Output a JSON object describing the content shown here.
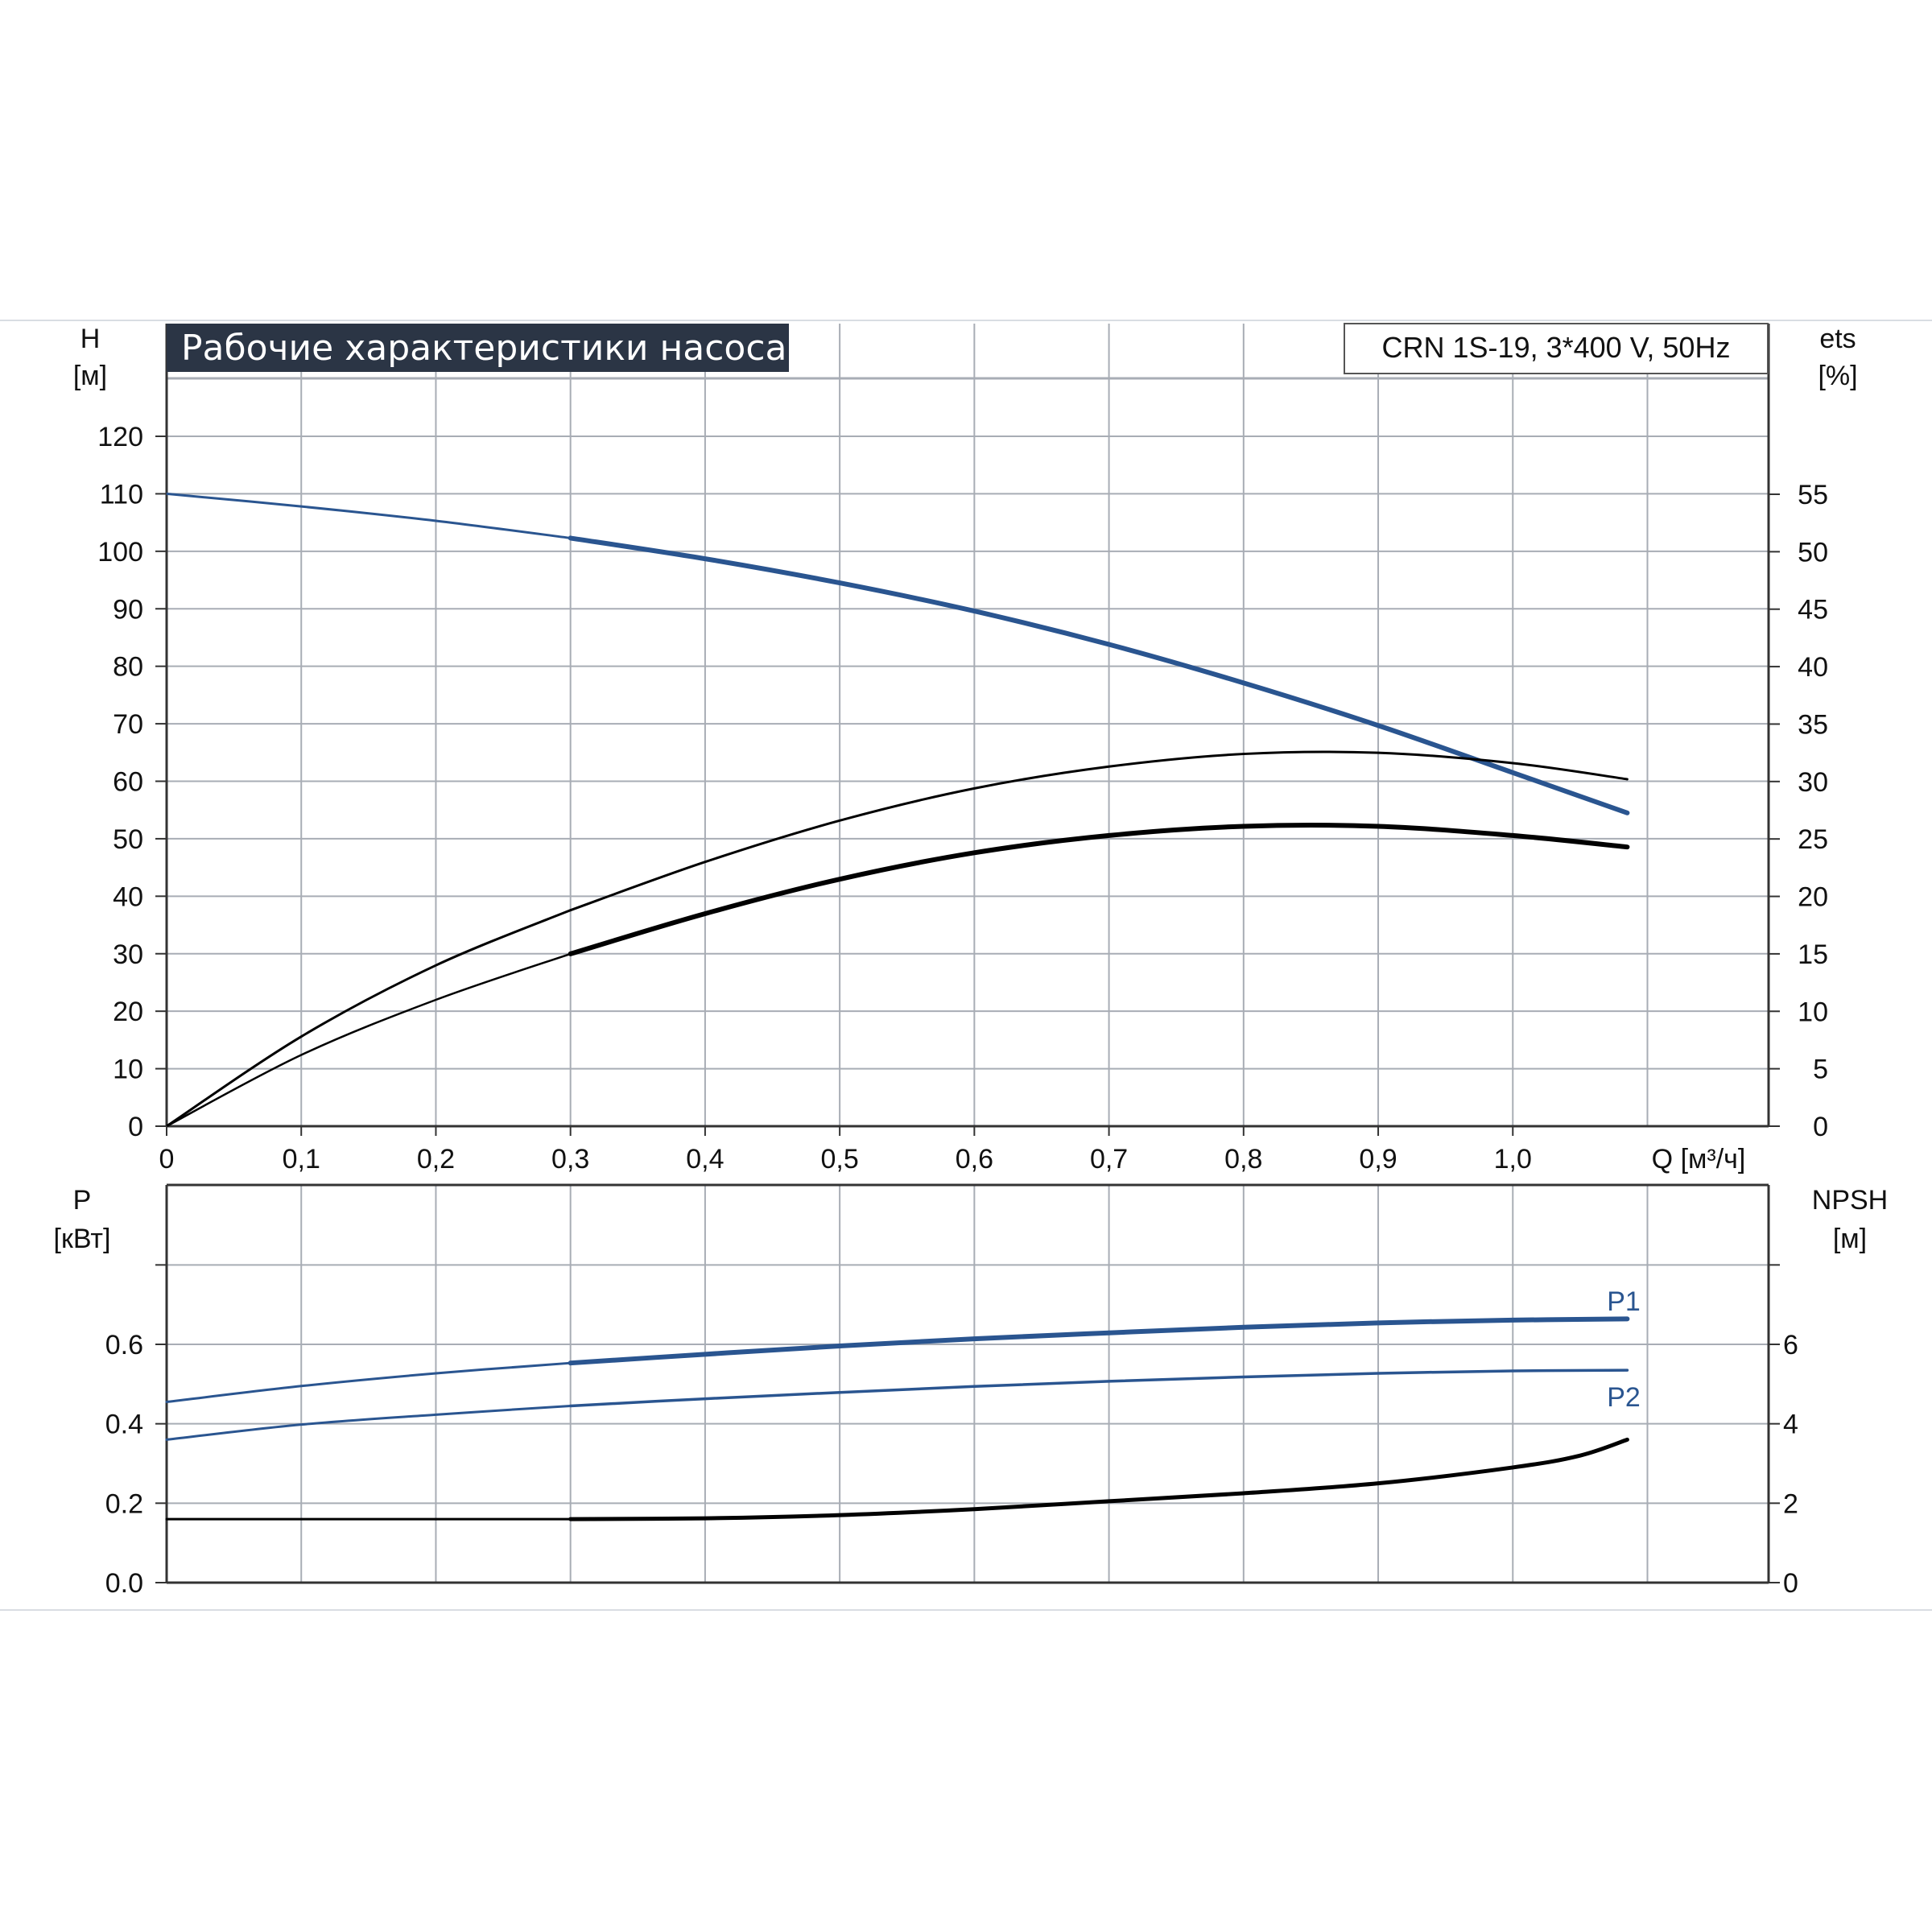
{
  "chart_data": [
    {
      "type": "line",
      "title": "Рабочие характеристики насоса",
      "model": "CRN 1S-19, 3*400 V, 50Hz",
      "xlabel": "Q [м³/ч]",
      "y_left": {
        "name": "H",
        "unit": "[м]",
        "lim": [
          0,
          120
        ],
        "ticks": [
          0,
          10,
          20,
          30,
          40,
          50,
          60,
          70,
          80,
          90,
          100,
          110,
          120
        ]
      },
      "y_right": {
        "name": "ets",
        "unit": "[%]",
        "lim": [
          0,
          60
        ],
        "ticks": [
          0,
          5,
          10,
          15,
          20,
          25,
          30,
          35,
          40,
          45,
          50,
          55
        ]
      },
      "xlim": [
        0,
        1.19
      ],
      "x_ticks": [
        "0",
        "0,1",
        "0,2",
        "0,3",
        "0,4",
        "0,5",
        "0,6",
        "0,7",
        "0,8",
        "0,9",
        "1,0"
      ],
      "grid": true,
      "series": [
        {
          "axis": "left",
          "color": "#2a5590",
          "x": [
            0,
            0.1,
            0.2,
            0.3,
            0.4,
            0.5,
            0.6,
            0.7,
            0.8,
            0.9,
            1.0,
            1.085
          ],
          "y": [
            110,
            107.8,
            105.3,
            102.3,
            98.7,
            94.5,
            89.6,
            83.8,
            77.1,
            69.7,
            61.5,
            54.5
          ]
        },
        {
          "axis": "right",
          "color": "#000000",
          "x": [
            0,
            0.1,
            0.2,
            0.3,
            0.4,
            0.5,
            0.6,
            0.7,
            0.8,
            0.9,
            1.0,
            1.085
          ],
          "y": [
            0,
            7.8,
            14,
            18.8,
            23,
            26.6,
            29.4,
            31.3,
            32.4,
            32.5,
            31.6,
            30.2
          ]
        },
        {
          "axis": "right",
          "color": "#000000",
          "x": [
            0,
            0.1,
            0.2,
            0.3,
            0.4,
            0.5,
            0.6,
            0.7,
            0.8,
            0.9,
            1.0,
            1.085
          ],
          "y": [
            0,
            6.2,
            11,
            15,
            18.5,
            21.5,
            23.8,
            25.3,
            26.1,
            26.1,
            25.3,
            24.3
          ]
        }
      ]
    },
    {
      "type": "line",
      "y_left": {
        "name": "P",
        "unit": "[кВт]",
        "lim": [
          0,
          0.8
        ],
        "ticks": [
          "0.0",
          "0.2",
          "0.4",
          "0.6"
        ]
      },
      "y_right": {
        "name": "NPSH",
        "unit": "[м]",
        "lim": [
          0,
          8
        ],
        "ticks": [
          "0",
          "2",
          "4",
          "6"
        ]
      },
      "xlim": [
        0,
        1.19
      ],
      "grid": true,
      "series": [
        {
          "name": "P1",
          "axis": "left",
          "color": "#2a5590",
          "x": [
            0,
            0.1,
            0.2,
            0.3,
            0.4,
            0.5,
            0.6,
            0.7,
            0.8,
            0.9,
            1.0,
            1.085
          ],
          "y": [
            0.455,
            0.495,
            0.527,
            0.553,
            0.575,
            0.596,
            0.614,
            0.629,
            0.643,
            0.654,
            0.661,
            0.664
          ]
        },
        {
          "name": "P2",
          "axis": "left",
          "color": "#2a5590",
          "x": [
            0,
            0.1,
            0.2,
            0.3,
            0.4,
            0.5,
            0.6,
            0.7,
            0.8,
            0.9,
            1.0,
            1.085
          ],
          "y": [
            0.36,
            0.398,
            0.423,
            0.445,
            0.463,
            0.479,
            0.494,
            0.507,
            0.518,
            0.527,
            0.533,
            0.535
          ]
        },
        {
          "axis": "right",
          "color": "#000000",
          "x": [
            0,
            0.1,
            0.2,
            0.3,
            0.4,
            0.5,
            0.6,
            0.7,
            0.8,
            0.9,
            1.0,
            1.05,
            1.085
          ],
          "y": [
            1.6,
            1.6,
            1.6,
            1.6,
            1.62,
            1.7,
            1.85,
            2.05,
            2.25,
            2.5,
            2.9,
            3.2,
            3.6
          ]
        }
      ]
    }
  ]
}
